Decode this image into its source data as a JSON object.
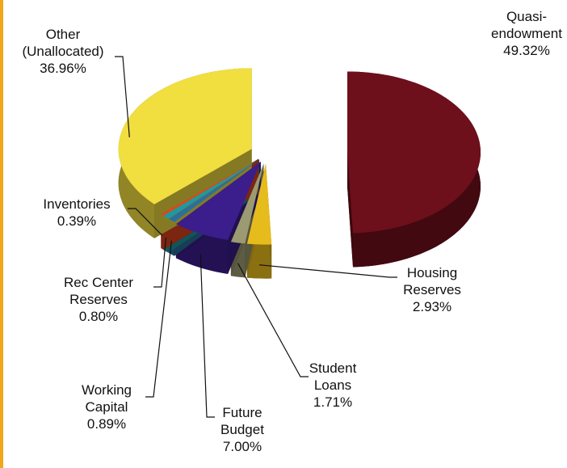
{
  "chart_data": {
    "type": "pie",
    "categories": [
      "Quasi-endowment",
      "Housing Reserves",
      "Student Loans",
      "Future Budget",
      "Working Capital",
      "Rec Center Reserves",
      "Inventories",
      "Other (Unallocated)"
    ],
    "values": [
      49.32,
      2.93,
      1.71,
      7.0,
      0.89,
      0.8,
      0.39,
      36.96
    ],
    "value_labels": [
      "49.32%",
      "2.93%",
      "1.71%",
      "7.00%",
      "0.89%",
      "0.80%",
      "0.39%",
      "36.96%"
    ],
    "colors": [
      "#6e0f1c",
      "#e6bb1c",
      "#9c9a70",
      "#3b1d8c",
      "#2a6f9e",
      "#1c9aa3",
      "#e2431f",
      "#f1de3f"
    ]
  }
}
